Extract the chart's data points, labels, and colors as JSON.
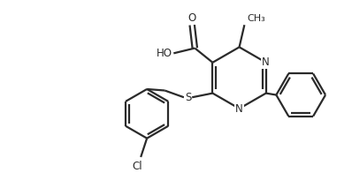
{
  "bg_color": "#ffffff",
  "bond_color": "#2a2a2a",
  "line_width": 1.6,
  "figsize": [
    3.98,
    1.96
  ],
  "dpi": 100,
  "xlim": [
    0,
    10
  ],
  "ylim": [
    0,
    5
  ]
}
